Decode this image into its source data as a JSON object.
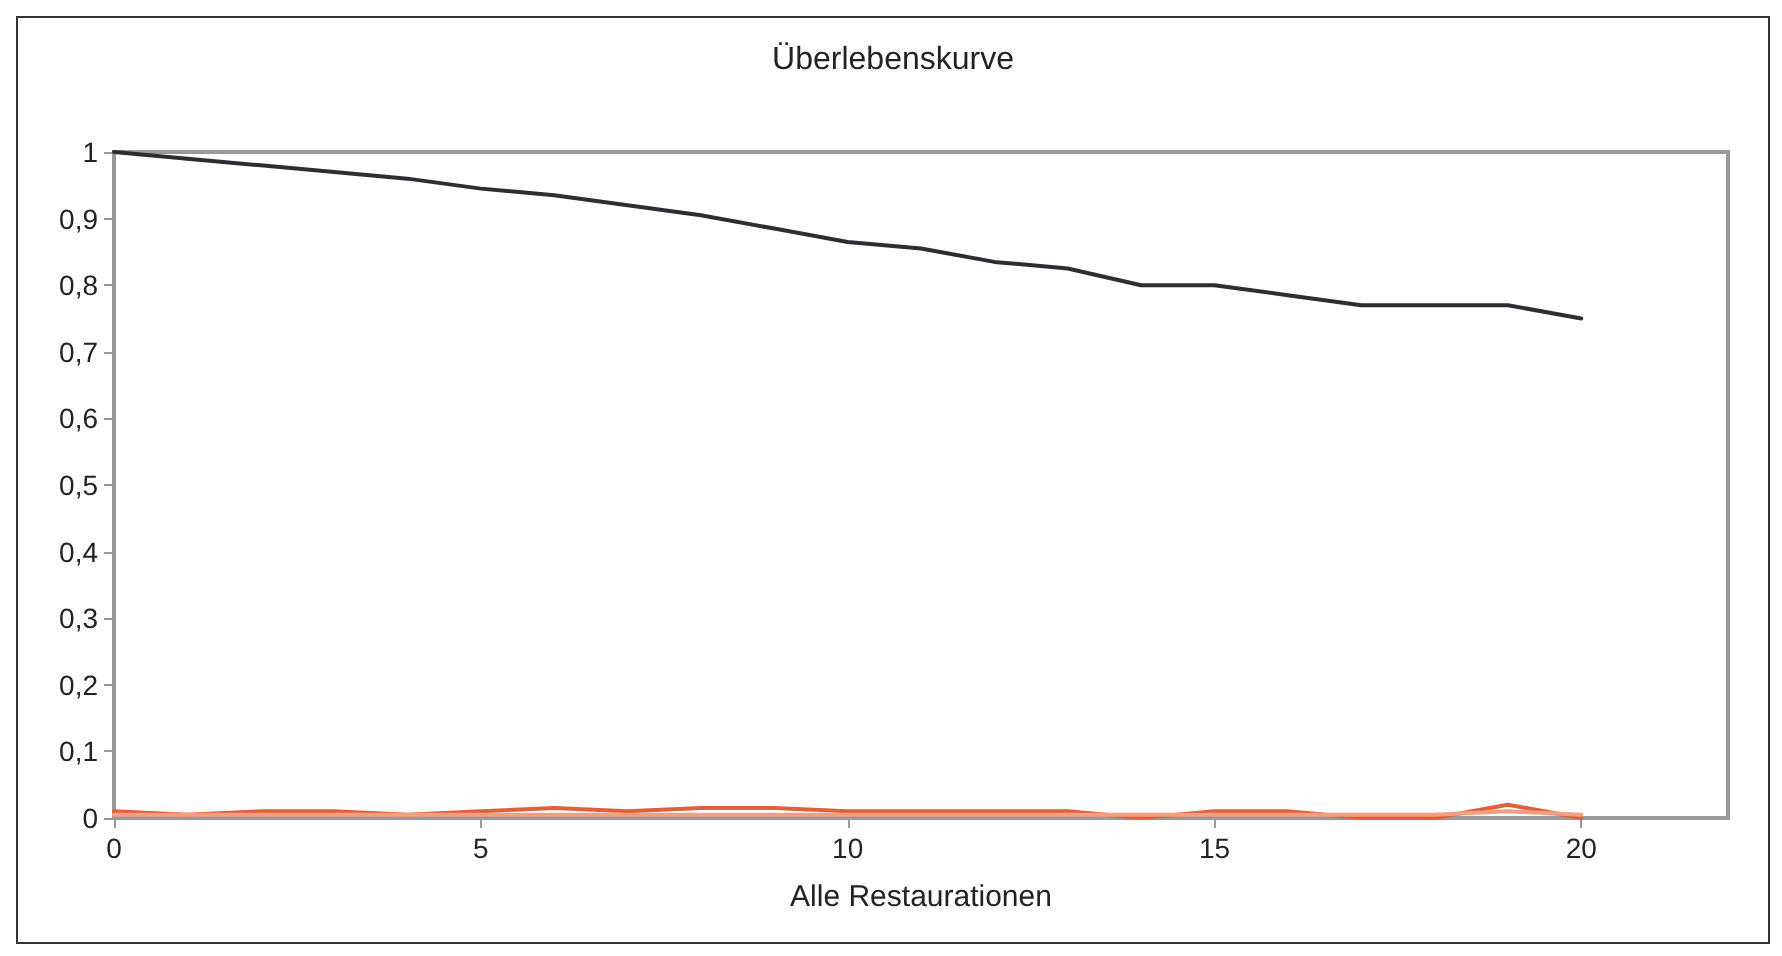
{
  "chart_data": {
    "type": "line",
    "title": "Überlebenskurve",
    "xlabel": "Alle Restaurationen",
    "x": [
      0,
      1,
      2,
      3,
      4,
      5,
      6,
      7,
      8,
      9,
      10,
      11,
      12,
      13,
      14,
      15,
      16,
      17,
      18,
      19,
      20
    ],
    "series": [
      {
        "color": "#2b2f33",
        "values": [
          1,
          0.99,
          0.98,
          0.97,
          0.96,
          0.945,
          0.935,
          0.92,
          0.905,
          0.885,
          0.865,
          0.855,
          0.835,
          0.825,
          0.8,
          0.8,
          0.785,
          0.77,
          0.77,
          0.77,
          0.75
        ]
      },
      {
        "color": "#e0603c",
        "values": [
          0.01,
          0.005,
          0.01,
          0.01,
          0.005,
          0.01,
          0.015,
          0.01,
          0.015,
          0.015,
          0.01,
          0.01,
          0.01,
          0.01,
          0,
          0.01,
          0.01,
          0,
          0,
          0.02,
          0
        ]
      },
      {
        "color": "#f0a080",
        "values": [
          0.005,
          0.005,
          0.005,
          0.005,
          0.005,
          0.005,
          0.005,
          0.005,
          0.005,
          0.005,
          0.005,
          0.005,
          0.005,
          0.005,
          0.005,
          0.005,
          0.005,
          0.005,
          0.005,
          0.01,
          0.005
        ]
      }
    ],
    "xlim": [
      0,
      22
    ],
    "xticks": [
      0,
      5,
      10,
      15,
      20
    ],
    "ylim": [
      0,
      1
    ],
    "yticks": [
      0,
      {
        "value": 0.1,
        "label": "0,1"
      },
      {
        "value": 0.2,
        "label": "0,2"
      },
      {
        "value": 0.3,
        "label": "0,3"
      },
      {
        "value": 0.4,
        "label": "0,4"
      },
      {
        "value": 0.5,
        "label": "0,5"
      },
      {
        "value": 0.6,
        "label": "0,6"
      },
      {
        "value": 0.7,
        "label": "0,7"
      },
      {
        "value": 0.8,
        "label": "0,8"
      },
      {
        "value": 0.9,
        "label": "0,9"
      },
      1
    ],
    "grid": false,
    "marker": "none",
    "line_style": "solid"
  }
}
